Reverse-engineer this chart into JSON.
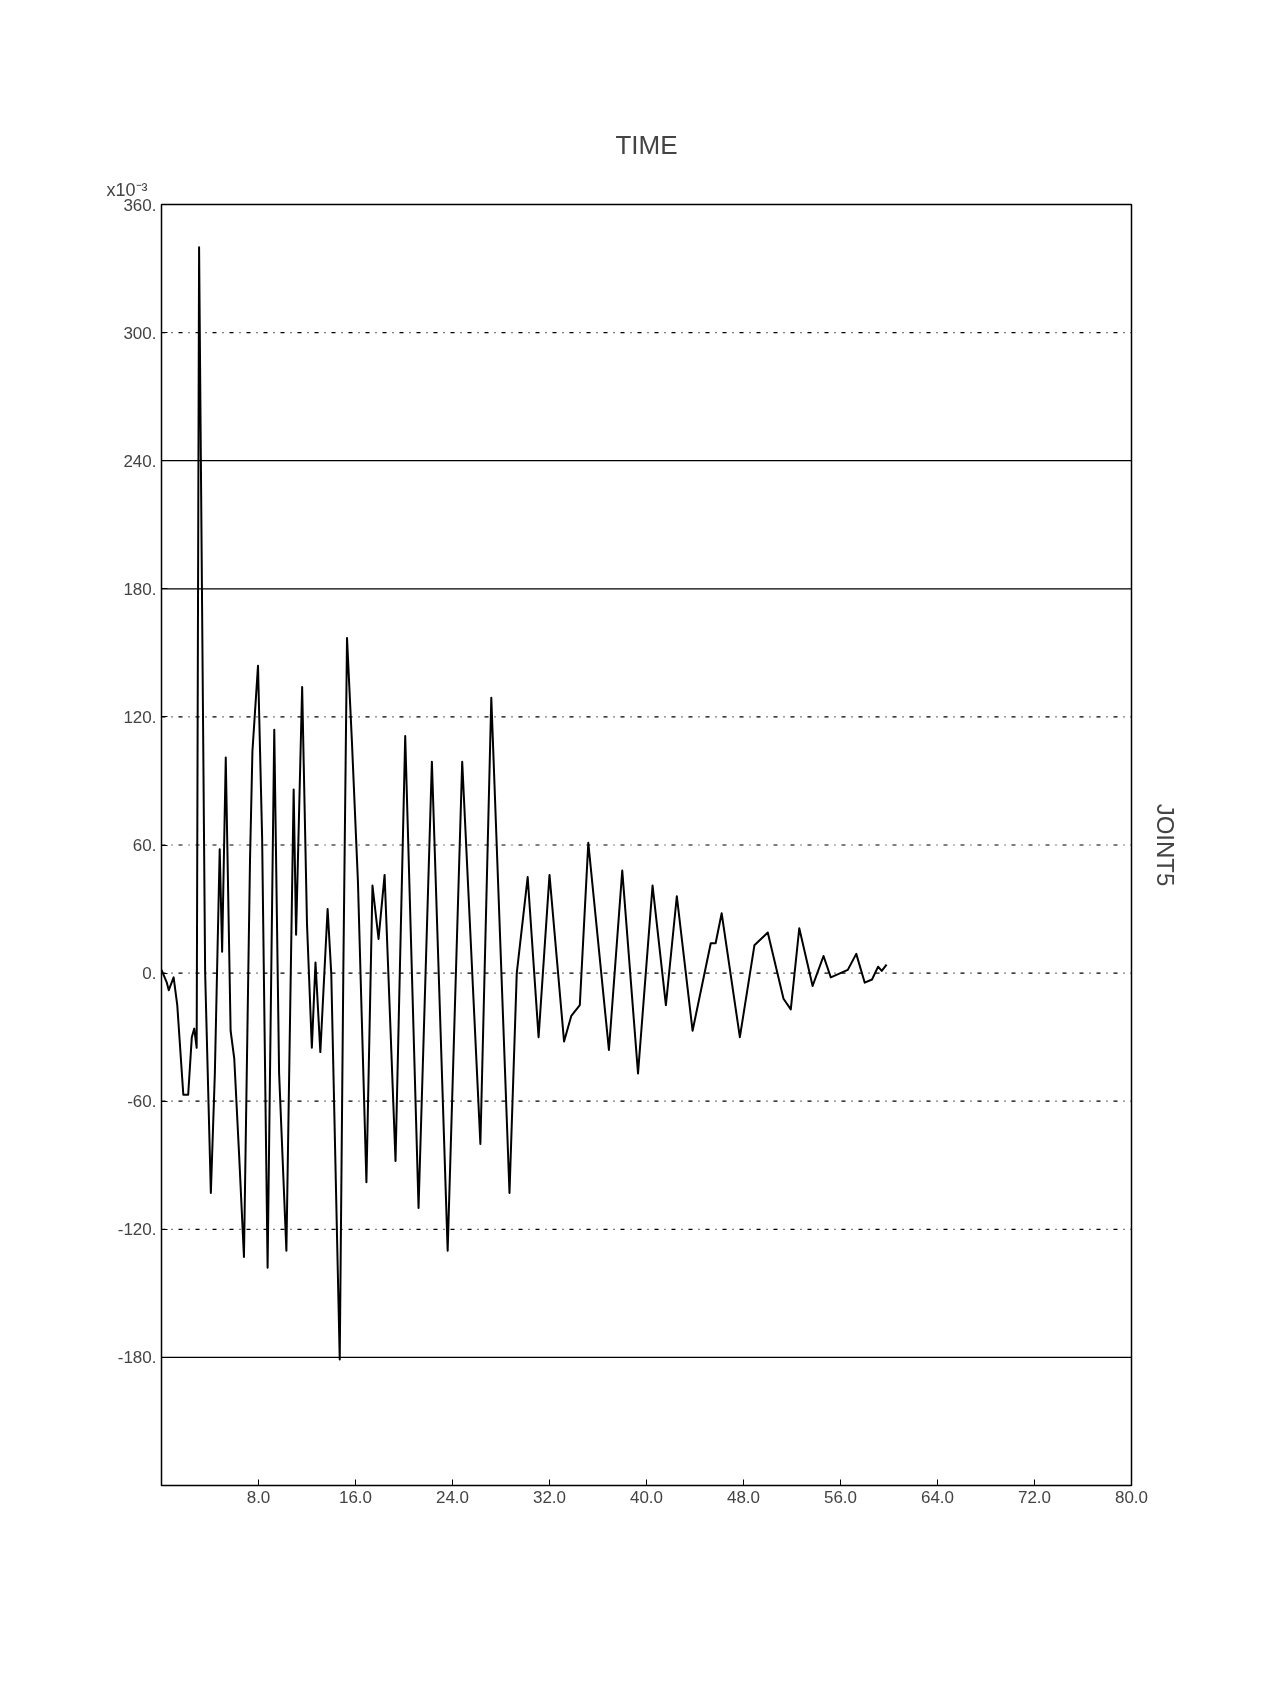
{
  "chart_data": {
    "type": "line",
    "title": "TIME",
    "ylabel": "JOINT5",
    "annotations": [
      "x10⁻³"
    ],
    "xlim": [
      0,
      80
    ],
    "xticks": [
      {
        "value": 8,
        "label": "8.0"
      },
      {
        "value": 16,
        "label": "16.0"
      },
      {
        "value": 24,
        "label": "24.0"
      },
      {
        "value": 32,
        "label": "32.0"
      },
      {
        "value": 40,
        "label": "40.0"
      },
      {
        "value": 48,
        "label": "48.0"
      },
      {
        "value": 56,
        "label": "56.0"
      },
      {
        "value": 64,
        "label": "64.0"
      },
      {
        "value": 72,
        "label": "72.0"
      },
      {
        "value": 80,
        "label": "80.0"
      }
    ],
    "ylim": [
      -240,
      360
    ],
    "yticks": [
      {
        "value": 360,
        "label": "360."
      },
      {
        "value": 300,
        "label": "300."
      },
      {
        "value": 240,
        "label": "240."
      },
      {
        "value": 180,
        "label": "180."
      },
      {
        "value": 120,
        "label": "120."
      },
      {
        "value": 60,
        "label": "60."
      },
      {
        "value": 0,
        "label": "0."
      },
      {
        "value": -60,
        "label": "-60."
      },
      {
        "value": -120,
        "label": "-120."
      },
      {
        "value": -180,
        "label": "-180."
      }
    ],
    "grid": false,
    "marker": "none",
    "line_style": "solid",
    "ref_lines": [
      {
        "axis": "y",
        "value": 300,
        "line_style": "dotted"
      },
      {
        "axis": "y",
        "value": 240,
        "line_style": "solid"
      },
      {
        "axis": "y",
        "value": 180,
        "line_style": "solid"
      },
      {
        "axis": "y",
        "value": 120,
        "line_style": "dotted"
      },
      {
        "axis": "y",
        "value": 60,
        "line_style": "dotted"
      },
      {
        "axis": "y",
        "value": 0,
        "line_style": "dotted"
      },
      {
        "axis": "y",
        "value": -60,
        "line_style": "dotted"
      },
      {
        "axis": "y",
        "value": -120,
        "line_style": "dotted"
      },
      {
        "axis": "y",
        "value": -180,
        "line_style": "solid"
      }
    ],
    "series": [
      {
        "color": "#000000",
        "x": [
          0,
          0.44,
          0.6,
          1.0,
          1.3,
          1.8,
          2.2,
          2.5,
          2.7,
          2.9,
          3.1,
          3.6,
          4.07,
          4.4,
          4.8,
          5.0,
          5.3,
          5.7,
          6.0,
          6.4,
          6.8,
          7.3,
          7.5,
          7.96,
          8.3,
          8.75,
          9.3,
          9.7,
          10.3,
          10.9,
          11.1,
          11.6,
          12.0,
          12.4,
          12.7,
          13.1,
          13.7,
          14.0,
          14.7,
          15.0,
          15.3,
          15.7,
          16.2,
          16.9,
          17.4,
          17.9,
          18.4,
          19.3,
          20.1,
          21.2,
          22.3,
          23.6,
          24.8,
          26.3,
          27.2,
          28.7,
          29.3,
          30.2,
          31.1,
          32.0,
          33.2,
          33.8,
          34.5,
          35.2,
          36.9,
          38.0,
          39.3,
          40.5,
          41.6,
          42.5,
          43.8,
          45.3,
          45.7,
          46.2,
          47.7,
          48.9,
          50.0,
          51.3,
          51.9,
          52.6,
          53.7,
          54.6,
          55.2,
          56.6,
          57.3,
          58.0,
          58.6,
          59.1,
          59.4,
          59.8
        ],
        "values": [
          1.5,
          -4.5,
          -8,
          -2,
          -15,
          -57,
          -57,
          -30,
          -26,
          -35,
          340,
          0,
          -103,
          -47,
          58,
          10,
          101,
          -27,
          -40,
          -85,
          -133,
          53,
          104,
          144,
          63,
          -138,
          114,
          -47,
          -130,
          86,
          18,
          134,
          23,
          -35,
          5,
          -37,
          30,
          0,
          -181,
          3,
          157,
          109,
          43,
          -98,
          41,
          16,
          46,
          -88,
          111,
          -110,
          99,
          -130,
          99,
          -80,
          129,
          -103,
          0,
          45,
          -30,
          46,
          -32,
          -20,
          -15,
          61,
          -36,
          48,
          -47,
          41,
          -15,
          36,
          -27,
          14,
          14,
          28,
          -30,
          13,
          19,
          -12,
          -17,
          21,
          -6,
          8,
          -2,
          1.5,
          9,
          -4.5,
          -3,
          3,
          1,
          4
        ]
      }
    ]
  }
}
